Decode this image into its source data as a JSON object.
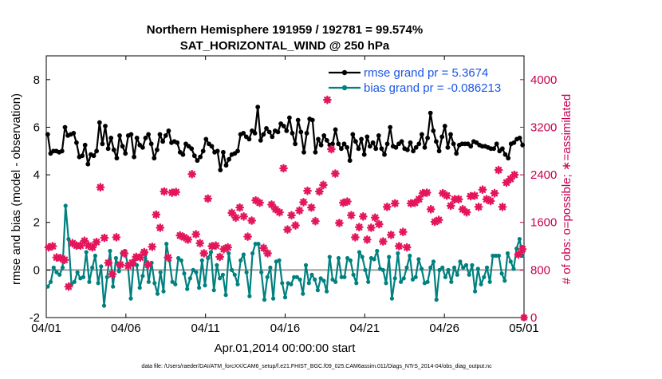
{
  "chart_data": {
    "type": "line",
    "title": [
      "Northern Hemisphere 191959 / 192781 = 99.574%",
      "SAT_HORIZONTAL_WIND @ 250 hPa"
    ],
    "xlabel": "Apr.01,2014 00:00:00 start",
    "ylabel": "rmse and bias (model - observation)",
    "ylabel_right": "# of obs: o=possible; ∗=assimilated",
    "xticks": [
      "04/01",
      "04/06",
      "04/11",
      "04/16",
      "04/21",
      "04/26",
      "05/01"
    ],
    "xlim": [
      0,
      30
    ],
    "ylim": [
      -2,
      9
    ],
    "yticks": [
      "-2",
      "0",
      "2",
      "4",
      "6",
      "8"
    ],
    "ylim_right": [
      0,
      4400
    ],
    "yticks_right": [
      "0",
      "800",
      "1600",
      "2400",
      "3200",
      "4000"
    ],
    "footer": "data file: /Users/raeder/DAI/ATM_forcXX/CAM6_setup/f.e21.FHIST_BGC.f09_025.CAM6assim.011/Diags_NTrS_2014-04/obs_diag_output.nc",
    "legend": [
      {
        "label": "rmse grand pr = 5.3674",
        "color": "#000000"
      },
      {
        "label": "bias grand pr = -0.086213",
        "color": "#00807f"
      }
    ],
    "series": [
      {
        "name": "rmse",
        "color": "#000000",
        "values": [
          5.7,
          4.9,
          5.0,
          5.0,
          4.95,
          5.0,
          6.0,
          5.65,
          5.7,
          5.75,
          5.35,
          4.75,
          4.8,
          5.25,
          4.45,
          4.85,
          4.8,
          5.0,
          6.2,
          5.3,
          6.05,
          5.1,
          5.55,
          5.05,
          4.7,
          5.65,
          5.2,
          4.9,
          5.65,
          5.7,
          4.75,
          5.55,
          5.25,
          5.15,
          5.55,
          5.7,
          5.3,
          4.7,
          5.05,
          5.7,
          5.4,
          5.65,
          5.85,
          5.35,
          5.4,
          5.35,
          4.95,
          4.85,
          5.3,
          5.2,
          5.1,
          4.8,
          4.6,
          4.75,
          5.0,
          5.5,
          5.3,
          5.2,
          4.95,
          5.0,
          4.2,
          4.95,
          4.4,
          4.65,
          4.85,
          4.9,
          5.0,
          5.7,
          5.75,
          5.6,
          5.5,
          5.85,
          5.75,
          6.85,
          5.45,
          5.7,
          5.95,
          5.8,
          5.6,
          5.85,
          5.8,
          6.15,
          6.05,
          5.85,
          6.4,
          5.75,
          5.3,
          6.3,
          5.8,
          4.95,
          5.75,
          6.35,
          6.3,
          4.95,
          5.5,
          5.25,
          5.65,
          5.45,
          5.25,
          5.3,
          5.9,
          5.3,
          5.1,
          5.3,
          5.15,
          4.6,
          5.7,
          5.4,
          5.1,
          5.5,
          4.85,
          5.6,
          5.2,
          5.35,
          5.1,
          5.65,
          5.1,
          4.85,
          5.3,
          6.0,
          5.2,
          5.15,
          5.3,
          5.4,
          5.1,
          5.05,
          5.35,
          5.0,
          5.15,
          5.3,
          5.7,
          5.15,
          5.55,
          6.6,
          5.85,
          5.4,
          5.0,
          5.6,
          6.05,
          5.15,
          5.7,
          5.3,
          4.9,
          5.25,
          5.3,
          5.3,
          5.3,
          5.2,
          5.4,
          5.35,
          5.25,
          5.2,
          5.2,
          5.15,
          5.1,
          5.1,
          5.3,
          5.0,
          5.1,
          4.85,
          4.7,
          5.3,
          5.35,
          5.5,
          5.55,
          5.25
        ]
      },
      {
        "name": "bias",
        "color": "#00807f",
        "values": [
          -0.7,
          -0.5,
          0.1,
          -0.1,
          -0.2,
          0.1,
          2.7,
          1.3,
          -0.6,
          -0.5,
          -0.1,
          -0.35,
          -0.3,
          0.75,
          -0.5,
          0.1,
          0.6,
          -0.55,
          0.15,
          -1.5,
          -0.3,
          0.8,
          -0.7,
          0.5,
          -0.05,
          0.7,
          0.8,
          0.2,
          -1.2,
          0.4,
          0.2,
          -0.75,
          -0.25,
          0.7,
          -0.5,
          0.3,
          -0.55,
          -1.0,
          -0.1,
          -0.9,
          1.1,
          0.4,
          -0.5,
          -0.6,
          0.5,
          0.4,
          -0.15,
          -0.8,
          -0.35,
          0.0,
          -0.1,
          -0.75,
          0.4,
          -0.65,
          0.5,
          0.75,
          -0.85,
          0.2,
          -0.35,
          -0.2,
          -1.05,
          0.7,
          0.0,
          -0.2,
          -0.6,
          0.4,
          0.65,
          -0.1,
          -1.1,
          0.7,
          1.1,
          1.1,
          -0.1,
          -1.25,
          -0.3,
          0.1,
          -1.2,
          0.35,
          0.4,
          -0.55,
          -1.15,
          -0.55,
          -0.6,
          -0.3,
          -0.3,
          -0.4,
          -1.0,
          0.2,
          -0.55,
          -0.2,
          -0.4,
          -0.85,
          -0.35,
          -0.45,
          -0.9,
          0.55,
          -0.4,
          -0.5,
          0.5,
          -0.3,
          -0.3,
          0.5,
          0.4,
          -0.2,
          -0.55,
          0.75,
          0.55,
          0.0,
          -0.5,
          0.5,
          0.45,
          0.8,
          0.05,
          0.0,
          -0.55,
          0.55,
          -1.2,
          -0.35,
          0.7,
          -0.5,
          -0.35,
          0.1,
          0.6,
          -0.4,
          -0.3,
          0.45,
          0.05,
          -0.55,
          -0.5,
          0.1,
          0.35,
          -1.25,
          0.0,
          0.1,
          -0.3,
          0.0,
          -0.5,
          0.1,
          -0.2,
          0.35,
          0.1,
          0.2,
          -0.2,
          0.2,
          -0.9,
          0.05,
          -0.6,
          -0.3,
          0.1,
          -0.5,
          0.6,
          0.6,
          0.6,
          -0.15,
          -0.45,
          0.7,
          0.35,
          0.05,
          0.9,
          1.3,
          0.6
        ]
      }
    ],
    "assimilated_obs": [
      {
        "x": 0.15,
        "y": 1180
      },
      {
        "x": 0.4,
        "y": 1200
      },
      {
        "x": 0.65,
        "y": 1010
      },
      {
        "x": 0.9,
        "y": 1000
      },
      {
        "x": 1.15,
        "y": 970
      },
      {
        "x": 1.4,
        "y": 520
      },
      {
        "x": 1.65,
        "y": 1250
      },
      {
        "x": 1.9,
        "y": 1210
      },
      {
        "x": 2.15,
        "y": 1210
      },
      {
        "x": 2.4,
        "y": 1290
      },
      {
        "x": 2.65,
        "y": 1210
      },
      {
        "x": 2.9,
        "y": 1180
      },
      {
        "x": 3.15,
        "y": 1270
      },
      {
        "x": 3.4,
        "y": 2190
      },
      {
        "x": 3.65,
        "y": 1340
      },
      {
        "x": 3.9,
        "y": 920
      },
      {
        "x": 4.15,
        "y": 730
      },
      {
        "x": 4.4,
        "y": 1350
      },
      {
        "x": 4.65,
        "y": 890
      },
      {
        "x": 4.9,
        "y": 1080
      },
      {
        "x": 5.15,
        "y": 870
      },
      {
        "x": 5.4,
        "y": 920
      },
      {
        "x": 5.65,
        "y": 1020
      },
      {
        "x": 5.9,
        "y": 1010
      },
      {
        "x": 6.15,
        "y": 1100
      },
      {
        "x": 6.4,
        "y": 890
      },
      {
        "x": 6.65,
        "y": 1190
      },
      {
        "x": 6.9,
        "y": 1730
      },
      {
        "x": 7.15,
        "y": 1510
      },
      {
        "x": 7.4,
        "y": 2120
      },
      {
        "x": 7.65,
        "y": 1010
      },
      {
        "x": 7.9,
        "y": 2100
      },
      {
        "x": 8.15,
        "y": 2110
      },
      {
        "x": 8.4,
        "y": 1380
      },
      {
        "x": 8.65,
        "y": 1350
      },
      {
        "x": 8.9,
        "y": 1310
      },
      {
        "x": 9.15,
        "y": 2410
      },
      {
        "x": 9.4,
        "y": 1400
      },
      {
        "x": 9.65,
        "y": 1250
      },
      {
        "x": 9.9,
        "y": 1080
      },
      {
        "x": 10.15,
        "y": 2000
      },
      {
        "x": 10.4,
        "y": 1200
      },
      {
        "x": 10.65,
        "y": 1210
      },
      {
        "x": 10.9,
        "y": 1020
      },
      {
        "x": 11.15,
        "y": 1150
      },
      {
        "x": 11.4,
        "y": 1180
      },
      {
        "x": 11.65,
        "y": 1760
      },
      {
        "x": 11.9,
        "y": 1680
      },
      {
        "x": 12.15,
        "y": 1850
      },
      {
        "x": 12.4,
        "y": 1700
      },
      {
        "x": 12.65,
        "y": 1360
      },
      {
        "x": 12.9,
        "y": 1630
      },
      {
        "x": 13.15,
        "y": 1970
      },
      {
        "x": 13.4,
        "y": 1930
      },
      {
        "x": 13.65,
        "y": 1170
      },
      {
        "x": 13.9,
        "y": 1080
      },
      {
        "x": 14.15,
        "y": 1900
      },
      {
        "x": 14.4,
        "y": 1820
      },
      {
        "x": 14.65,
        "y": 1770
      },
      {
        "x": 14.9,
        "y": 2510
      },
      {
        "x": 15.15,
        "y": 1480
      },
      {
        "x": 15.4,
        "y": 1720
      },
      {
        "x": 15.65,
        "y": 1550
      },
      {
        "x": 15.9,
        "y": 1800
      },
      {
        "x": 16.15,
        "y": 1940
      },
      {
        "x": 16.4,
        "y": 2130
      },
      {
        "x": 16.65,
        "y": 1850
      },
      {
        "x": 16.9,
        "y": 1620
      },
      {
        "x": 17.15,
        "y": 2120
      },
      {
        "x": 17.4,
        "y": 2230
      },
      {
        "x": 17.65,
        "y": 3660
      },
      {
        "x": 17.9,
        "y": 2830
      },
      {
        "x": 18.15,
        "y": 2420
      },
      {
        "x": 18.4,
        "y": 1590
      },
      {
        "x": 18.65,
        "y": 1930
      },
      {
        "x": 18.9,
        "y": 1950
      },
      {
        "x": 19.15,
        "y": 1720
      },
      {
        "x": 19.4,
        "y": 1350
      },
      {
        "x": 19.65,
        "y": 1520
      },
      {
        "x": 19.9,
        "y": 1700
      },
      {
        "x": 20.15,
        "y": 1310
      },
      {
        "x": 20.4,
        "y": 1510
      },
      {
        "x": 20.65,
        "y": 1680
      },
      {
        "x": 20.9,
        "y": 1570
      },
      {
        "x": 21.15,
        "y": 1280
      },
      {
        "x": 21.4,
        "y": 1860
      },
      {
        "x": 21.65,
        "y": 1390
      },
      {
        "x": 21.9,
        "y": 1920
      },
      {
        "x": 22.15,
        "y": 1200
      },
      {
        "x": 22.4,
        "y": 1440
      },
      {
        "x": 22.65,
        "y": 1180
      },
      {
        "x": 22.9,
        "y": 1920
      },
      {
        "x": 23.15,
        "y": 1930
      },
      {
        "x": 23.4,
        "y": 1990
      },
      {
        "x": 23.65,
        "y": 2090
      },
      {
        "x": 23.9,
        "y": 2100
      },
      {
        "x": 24.15,
        "y": 1820
      },
      {
        "x": 24.4,
        "y": 1610
      },
      {
        "x": 24.65,
        "y": 1640
      },
      {
        "x": 24.9,
        "y": 2090
      },
      {
        "x": 25.15,
        "y": 2050
      },
      {
        "x": 25.4,
        "y": 1880
      },
      {
        "x": 25.65,
        "y": 1990
      },
      {
        "x": 25.9,
        "y": 1990
      },
      {
        "x": 26.15,
        "y": 1820
      },
      {
        "x": 26.4,
        "y": 1770
      },
      {
        "x": 26.65,
        "y": 2040
      },
      {
        "x": 26.9,
        "y": 2050
      },
      {
        "x": 27.15,
        "y": 1860
      },
      {
        "x": 27.4,
        "y": 2150
      },
      {
        "x": 27.65,
        "y": 1990
      },
      {
        "x": 27.9,
        "y": 1960
      },
      {
        "x": 28.15,
        "y": 2090
      },
      {
        "x": 28.4,
        "y": 2480
      },
      {
        "x": 28.65,
        "y": 1860
      },
      {
        "x": 28.9,
        "y": 2270
      },
      {
        "x": 29.15,
        "y": 2330
      },
      {
        "x": 29.4,
        "y": 2400
      },
      {
        "x": 29.65,
        "y": 1060
      },
      {
        "x": 29.9,
        "y": 1150
      }
    ]
  }
}
